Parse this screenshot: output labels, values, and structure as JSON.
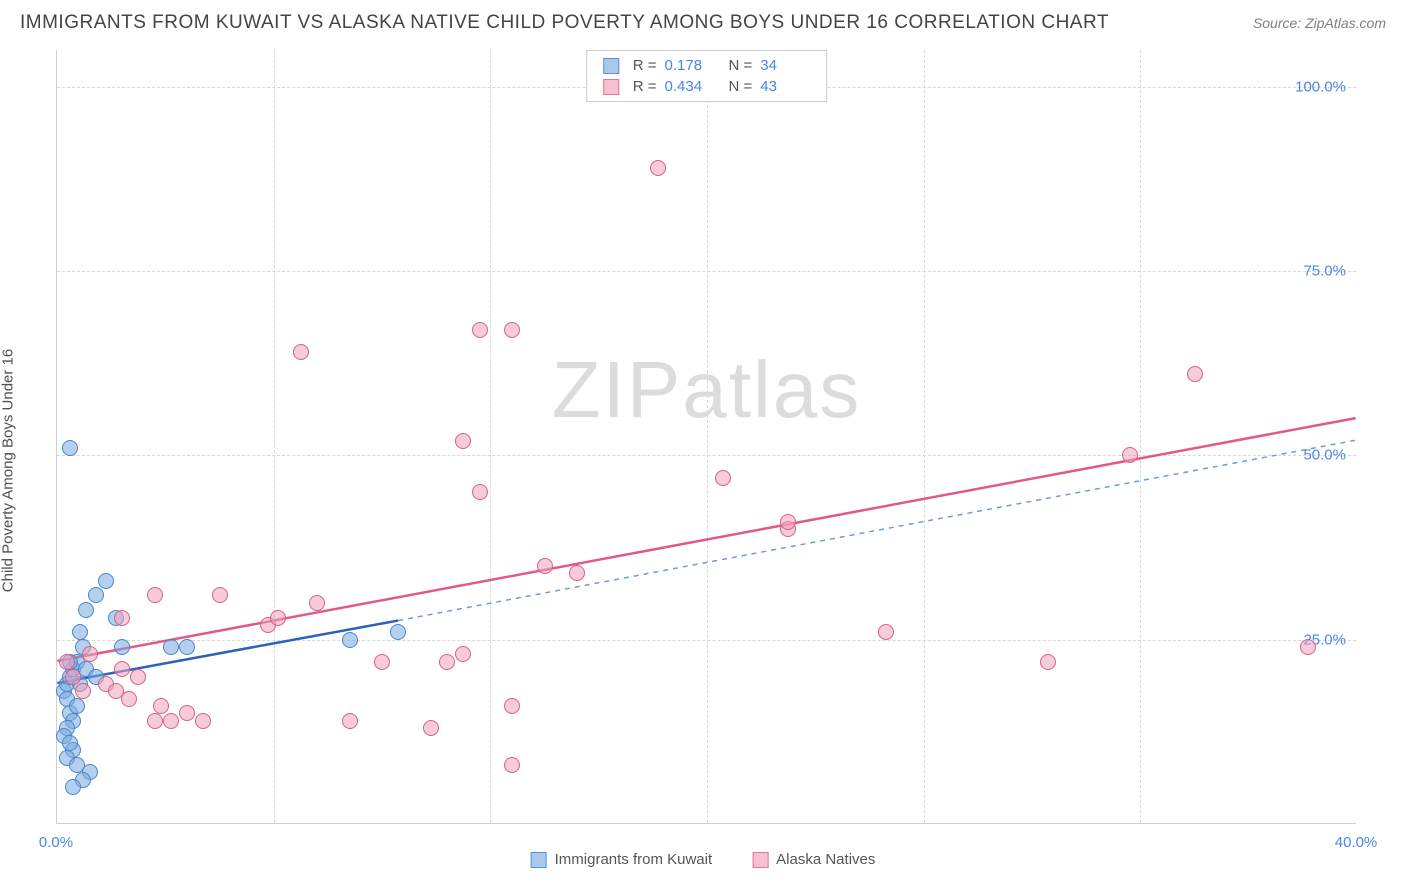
{
  "header": {
    "title": "IMMIGRANTS FROM KUWAIT VS ALASKA NATIVE CHILD POVERTY AMONG BOYS UNDER 16 CORRELATION CHART",
    "source": "Source: ZipAtlas.com"
  },
  "watermark": {
    "text_bold": "ZIP",
    "text_light": "atlas"
  },
  "chart": {
    "type": "scatter",
    "y_axis_label": "Child Poverty Among Boys Under 16",
    "xlim": [
      0,
      40
    ],
    "ylim": [
      0,
      105
    ],
    "x_ticks": [
      0,
      40
    ],
    "x_tick_labels": [
      "0.0%",
      "40.0%"
    ],
    "y_ticks": [
      25,
      50,
      75,
      100
    ],
    "y_tick_labels": [
      "25.0%",
      "50.0%",
      "75.0%",
      "100.0%"
    ],
    "x_grid": [
      6.67,
      13.33,
      20,
      26.67,
      33.33
    ],
    "background_color": "#ffffff",
    "grid_color": "#d8d8d8",
    "axis_color": "#d0d0d0",
    "tick_label_color": "#4a86e8"
  },
  "stats": {
    "rows": [
      {
        "swatch_fill": "#a8c8ee",
        "swatch_stroke": "#5a94d6",
        "r_label": "R =",
        "r_value": "0.178",
        "n_label": "N =",
        "n_value": "34"
      },
      {
        "swatch_fill": "#f6c1ce",
        "swatch_stroke": "#e27796",
        "r_label": "R =",
        "r_value": "0.434",
        "n_label": "N =",
        "n_value": "43"
      }
    ]
  },
  "legend": {
    "items": [
      {
        "swatch_fill": "#a8c8ee",
        "swatch_stroke": "#5a94d6",
        "label": "Immigrants from Kuwait"
      },
      {
        "swatch_fill": "#f6c1ce",
        "swatch_stroke": "#e27796",
        "label": "Alaska Natives"
      }
    ]
  },
  "series": [
    {
      "name": "kuwait",
      "fill": "rgba(120,170,225,0.55)",
      "stroke": "#4a86c8",
      "points": [
        [
          0.2,
          18
        ],
        [
          0.3,
          19
        ],
        [
          0.4,
          20
        ],
        [
          0.5,
          21
        ],
        [
          0.3,
          17
        ],
        [
          0.6,
          22
        ],
        [
          0.8,
          24
        ],
        [
          0.4,
          15
        ],
        [
          0.5,
          14
        ],
        [
          0.3,
          13
        ],
        [
          0.6,
          16
        ],
        [
          0.2,
          12
        ],
        [
          0.7,
          19
        ],
        [
          0.9,
          21
        ],
        [
          0.5,
          10
        ],
        [
          0.4,
          11
        ],
        [
          0.3,
          9
        ],
        [
          0.6,
          8
        ],
        [
          1.0,
          7
        ],
        [
          0.8,
          6
        ],
        [
          0.5,
          5
        ],
        [
          0.4,
          22
        ],
        [
          0.7,
          26
        ],
        [
          0.9,
          29
        ],
        [
          1.2,
          31
        ],
        [
          1.5,
          33
        ],
        [
          1.8,
          28
        ],
        [
          0.4,
          51
        ],
        [
          1.2,
          20
        ],
        [
          2.0,
          24
        ],
        [
          3.5,
          24
        ],
        [
          4.0,
          24
        ],
        [
          9.0,
          25
        ],
        [
          10.5,
          26
        ]
      ],
      "trend": {
        "x1": 0,
        "y1": 19,
        "x2": 10.5,
        "y2": 27.5,
        "color": "#2a62b8",
        "width": 2.5,
        "dash": "none"
      },
      "trend_ext": {
        "x1": 10.5,
        "y1": 27.5,
        "x2": 40,
        "y2": 52,
        "color": "#6a9edc",
        "width": 1.5,
        "dash": "5,5"
      }
    },
    {
      "name": "alaska",
      "fill": "rgba(240,160,185,0.55)",
      "stroke": "#d46285",
      "points": [
        [
          0.3,
          22
        ],
        [
          0.5,
          20
        ],
        [
          0.8,
          18
        ],
        [
          1.0,
          23
        ],
        [
          1.5,
          19
        ],
        [
          2.0,
          21
        ],
        [
          2.5,
          20
        ],
        [
          3.0,
          14
        ],
        [
          3.5,
          14
        ],
        [
          4.0,
          15
        ],
        [
          4.5,
          14
        ],
        [
          1.8,
          18
        ],
        [
          2.2,
          17
        ],
        [
          3.2,
          16
        ],
        [
          2.0,
          28
        ],
        [
          3.0,
          31
        ],
        [
          5.0,
          31
        ],
        [
          6.5,
          27
        ],
        [
          6.8,
          28
        ],
        [
          8.0,
          30
        ],
        [
          9.0,
          14
        ],
        [
          10.0,
          22
        ],
        [
          12.0,
          22
        ],
        [
          12.5,
          23
        ],
        [
          11.5,
          13
        ],
        [
          14.0,
          16
        ],
        [
          15.0,
          35
        ],
        [
          14.0,
          8
        ],
        [
          7.5,
          64
        ],
        [
          13.0,
          67
        ],
        [
          14.0,
          67
        ],
        [
          13.0,
          45
        ],
        [
          12.5,
          52
        ],
        [
          18.5,
          89
        ],
        [
          16.0,
          34
        ],
        [
          20.5,
          47
        ],
        [
          22.5,
          40
        ],
        [
          22.5,
          41
        ],
        [
          25.5,
          26
        ],
        [
          30.5,
          22
        ],
        [
          33.0,
          50
        ],
        [
          35.0,
          61
        ],
        [
          38.5,
          24
        ]
      ],
      "trend": {
        "x1": 0,
        "y1": 22,
        "x2": 40,
        "y2": 55,
        "color": "#e05a85",
        "width": 2.5,
        "dash": "none"
      }
    }
  ]
}
